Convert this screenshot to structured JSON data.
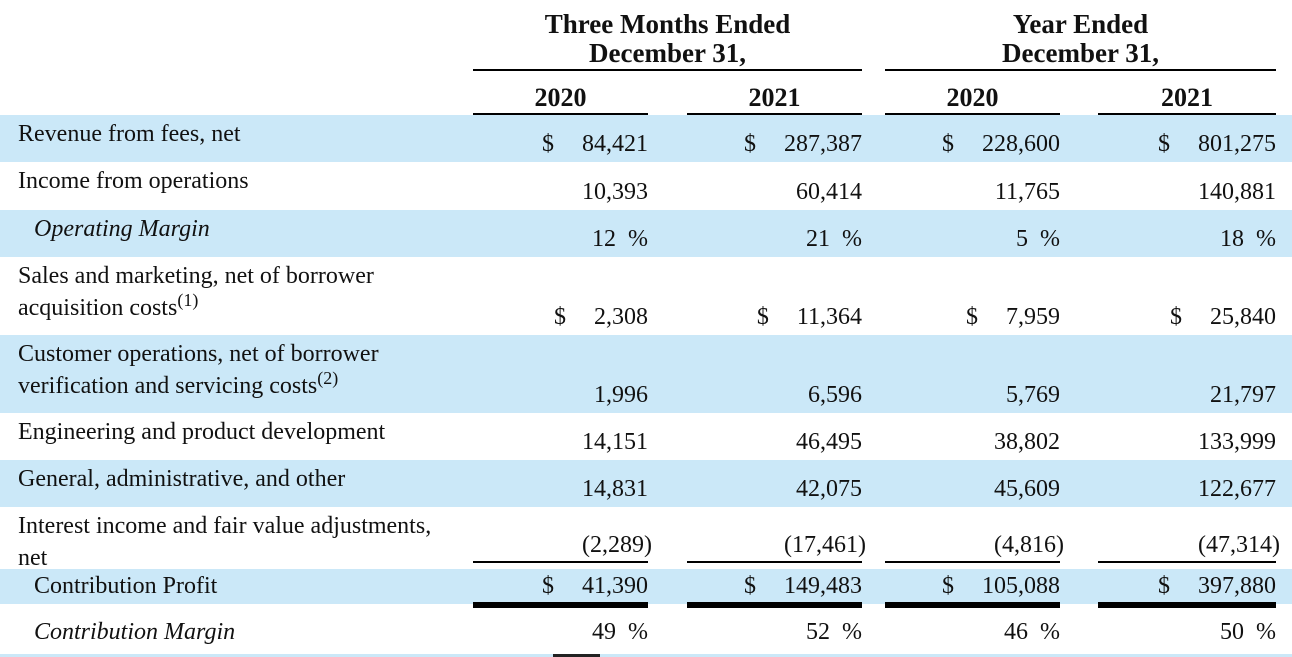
{
  "colors": {
    "row_highlight": "#cbe8f8",
    "rule": "#000000"
  },
  "table": {
    "group_headers": [
      {
        "line1": "Three Months Ended",
        "line2": "December 31,"
      },
      {
        "line1": "Year Ended",
        "line2": "December 31,"
      }
    ],
    "year_headers": [
      "2020",
      "2021",
      "2020",
      "2021"
    ],
    "rows": [
      {
        "label": "Revenue from fees, net",
        "currency": "$",
        "values": [
          "84,421",
          "287,387",
          "228,600",
          "801,275"
        ]
      },
      {
        "label": "Income from operations",
        "values": [
          "10,393",
          "60,414",
          "11,765",
          "140,881"
        ]
      },
      {
        "label": "Operating Margin",
        "unit": "%",
        "values": [
          "12",
          "21",
          "5",
          "18"
        ]
      },
      {
        "label_line1": "Sales and marketing, net of borrower",
        "label_line2": "acquisition costs",
        "footnote": "(1)",
        "currency": "$",
        "values": [
          "2,308",
          "11,364",
          "7,959",
          "25,840"
        ]
      },
      {
        "label_line1": "Customer operations, net of borrower",
        "label_line2": "verification and servicing costs",
        "footnote": "(2)",
        "values": [
          "1,996",
          "6,596",
          "5,769",
          "21,797"
        ]
      },
      {
        "label": "Engineering and product development",
        "values": [
          "14,151",
          "46,495",
          "38,802",
          "133,999"
        ]
      },
      {
        "label": "General, administrative, and other",
        "values": [
          "14,831",
          "42,075",
          "45,609",
          "122,677"
        ]
      },
      {
        "label_line1": "Interest income and fair value adjustments,",
        "label_line2": "net",
        "values": [
          "(2,289)",
          "(17,461)",
          "(4,816)",
          "(47,314)"
        ]
      },
      {
        "label": "Contribution Profit",
        "currency": "$",
        "values": [
          "41,390",
          "149,483",
          "105,088",
          "397,880"
        ]
      },
      {
        "label": "Contribution Margin",
        "unit": "%",
        "values": [
          "49",
          "52",
          "46",
          "50"
        ]
      }
    ]
  }
}
